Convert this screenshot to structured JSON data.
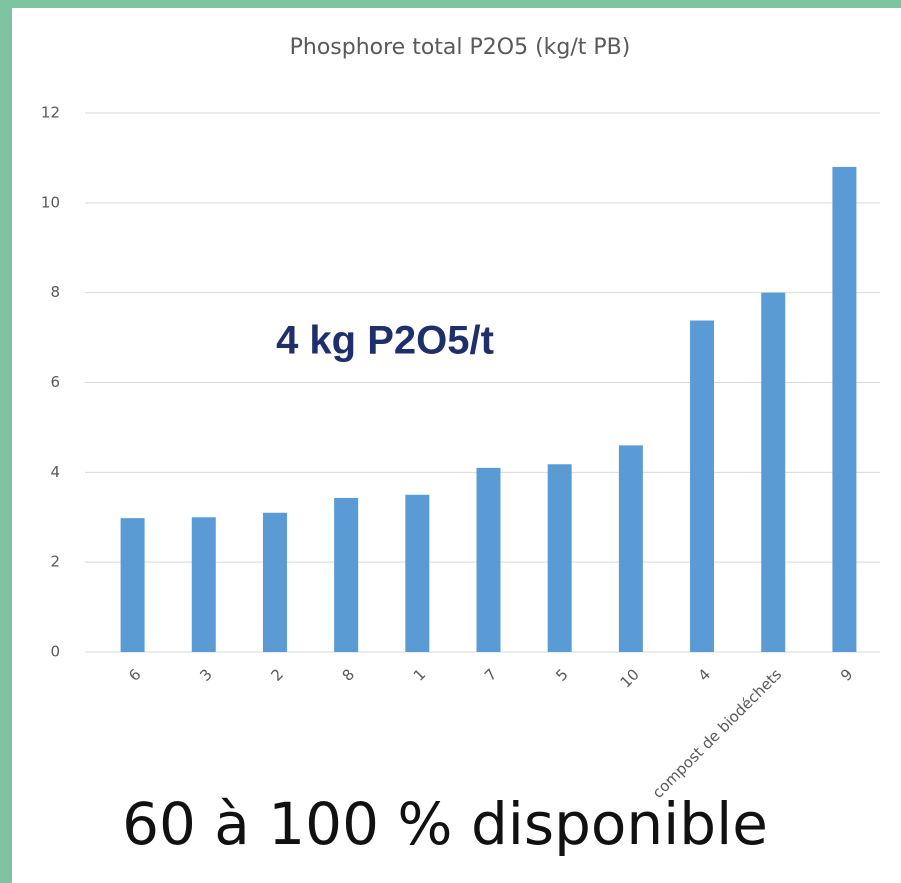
{
  "chart_data": {
    "type": "bar",
    "title": "Phosphore total P2O5 (kg/t PB)",
    "categories": [
      "6",
      "3",
      "2",
      "8",
      "1",
      "7",
      "5",
      "10",
      "4",
      "compost de biodéchets",
      "9"
    ],
    "values": [
      2.98,
      3.0,
      3.1,
      3.43,
      3.5,
      4.1,
      4.18,
      4.6,
      7.38,
      8.0,
      10.8
    ],
    "color": "#5b9bd5",
    "ylim": [
      0,
      12
    ],
    "yticks": [
      0,
      2,
      4,
      6,
      8,
      10,
      12
    ],
    "grid": true,
    "annotations": [
      "4 kg P2O5/t",
      "60 à 100 % disponible"
    ]
  }
}
